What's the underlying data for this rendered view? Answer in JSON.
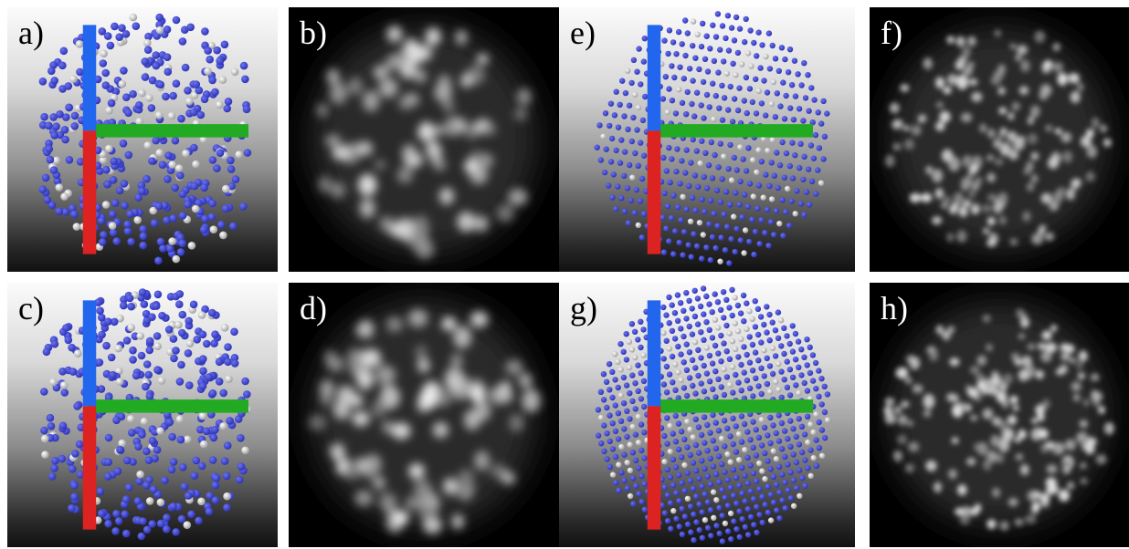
{
  "panels": [
    {
      "id": "a",
      "label": "a)",
      "kind": "atom-model",
      "structure": "amorphous",
      "col": 0,
      "row": 0
    },
    {
      "id": "b",
      "label": "b)",
      "kind": "stem-image",
      "structure": "amorphous",
      "col": 1,
      "row": 0
    },
    {
      "id": "c",
      "label": "c)",
      "kind": "atom-model",
      "structure": "amorphous",
      "col": 0,
      "row": 1
    },
    {
      "id": "d",
      "label": "d)",
      "kind": "stem-image",
      "structure": "amorphous",
      "col": 1,
      "row": 1
    },
    {
      "id": "e",
      "label": "e)",
      "kind": "atom-model",
      "structure": "crystalline-rows",
      "col": 2,
      "row": 0
    },
    {
      "id": "f",
      "label": "f)",
      "kind": "stem-image",
      "structure": "crystalline-rows",
      "col": 3,
      "row": 0
    },
    {
      "id": "g",
      "label": "g)",
      "kind": "atom-model",
      "structure": "crystalline-lattice",
      "col": 2,
      "row": 1
    },
    {
      "id": "h",
      "label": "h)",
      "kind": "stem-image",
      "structure": "crystalline-lattice",
      "col": 3,
      "row": 1
    }
  ],
  "colors": {
    "primary_atom": "#2a2fb0",
    "secondary_atom": "#cfcfcf",
    "stem_background": "#000000",
    "stem_spot": "#ffffff",
    "axis_x": "#22aa22",
    "axis_y": "#2266ee",
    "axis_z": "#dd2222"
  }
}
